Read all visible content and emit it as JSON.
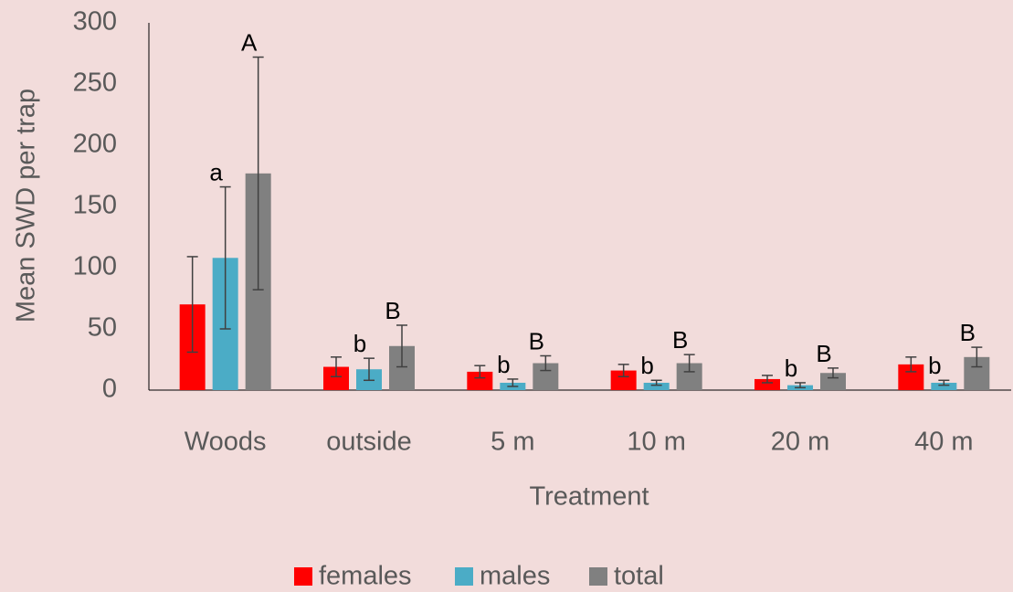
{
  "chart_data": {
    "type": "bar",
    "y_label": "Mean SWD per trap",
    "x_label": "Treatment",
    "categories": [
      "Woods",
      "outside",
      "5 m",
      "10 m",
      "20 m",
      "40 m"
    ],
    "series": [
      {
        "name": "females",
        "color": "#ff0000",
        "values": [
          70,
          19,
          15,
          16,
          9,
          21
        ],
        "errors": [
          39,
          8,
          5,
          5,
          3,
          6
        ]
      },
      {
        "name": "males",
        "color": "#4bacc6",
        "values": [
          108,
          17,
          6,
          6,
          4,
          6
        ],
        "errors": [
          58,
          9,
          3,
          2,
          2,
          2
        ],
        "letters": [
          "a",
          "b",
          "b",
          "b",
          "b",
          "b"
        ]
      },
      {
        "name": "total",
        "color": "#808080",
        "values": [
          177,
          36,
          22,
          22,
          14,
          27
        ],
        "errors": [
          95,
          17,
          6,
          7,
          4,
          8
        ],
        "letters": [
          "A",
          "B",
          "B",
          "B",
          "B",
          "B"
        ]
      }
    ],
    "ylim": [
      0,
      300
    ],
    "yticks": [
      0,
      50,
      100,
      150,
      200,
      250,
      300
    ],
    "legend": "bottom"
  }
}
